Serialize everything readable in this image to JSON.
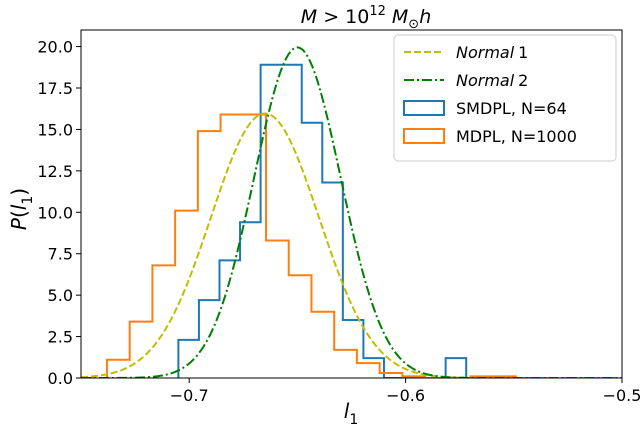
{
  "chart_data": {
    "type": "histogram",
    "title": {
      "prefix": "M > 10",
      "exponent": "12",
      "suffix_sub": "⊙",
      "suffix": "h",
      "main": "M"
    },
    "xlabel": {
      "base": "l",
      "sub": "1"
    },
    "ylabel": {
      "prefix": "P(",
      "base": "l",
      "sub": "1",
      "suffix": ")"
    },
    "xlim": [
      -0.75,
      -0.5
    ],
    "ylim": [
      0,
      21
    ],
    "xticks": [
      -0.7,
      -0.6,
      -0.5
    ],
    "xtick_labels": [
      "−0.7",
      "−0.6",
      "−0.5"
    ],
    "yticks": [
      0,
      2.5,
      5,
      7.5,
      10,
      12.5,
      15,
      17.5,
      20
    ],
    "ytick_labels": [
      "0.0",
      "2.5",
      "5.0",
      "7.5",
      "10.0",
      "12.5",
      "15.0",
      "17.5",
      "20.0"
    ],
    "legend_position": "top-right",
    "histograms": [
      {
        "name": "SMDPL, N=64",
        "color": "#1f77b4",
        "bin_edges": [
          -0.705,
          -0.6955,
          -0.686,
          -0.6765,
          -0.667,
          -0.6575,
          -0.648,
          -0.6385,
          -0.629,
          -0.6195,
          -0.61,
          -0.6005,
          -0.591,
          -0.5815,
          -0.572,
          -0.5625
        ],
        "values": [
          2.3,
          4.7,
          7.1,
          9.4,
          18.9,
          18.9,
          15.4,
          11.8,
          3.5,
          1.2,
          0,
          0,
          0,
          1.2,
          0
        ]
      },
      {
        "name": "MDPL, N=1000",
        "color": "#ff7f0e",
        "bin_edges": [
          -0.738,
          -0.7275,
          -0.717,
          -0.7065,
          -0.696,
          -0.6855,
          -0.675,
          -0.6645,
          -0.654,
          -0.6435,
          -0.633,
          -0.6225,
          -0.612,
          -0.6015,
          -0.591,
          -0.5805,
          -0.57,
          -0.5595,
          -0.549,
          -0.5385
        ],
        "values": [
          1.1,
          3.4,
          6.8,
          10.1,
          14.9,
          15.9,
          15.9,
          8.3,
          6.2,
          4.0,
          1.7,
          0.9,
          0.3,
          0.1,
          0,
          0,
          0.1,
          0.1,
          0
        ]
      }
    ],
    "curves": [
      {
        "name": "Normal 1",
        "name_italic": "Normal",
        "name_rest": "1",
        "style": "dashed",
        "color": "#bfbf00",
        "mu": -0.665,
        "sigma": 0.025,
        "amp": 15.96
      },
      {
        "name": "Normal 2",
        "name_italic": "Normal",
        "name_rest": "2",
        "style": "dashdot",
        "color": "#008000",
        "mu": -0.65,
        "sigma": 0.02,
        "amp": 19.95
      }
    ]
  }
}
